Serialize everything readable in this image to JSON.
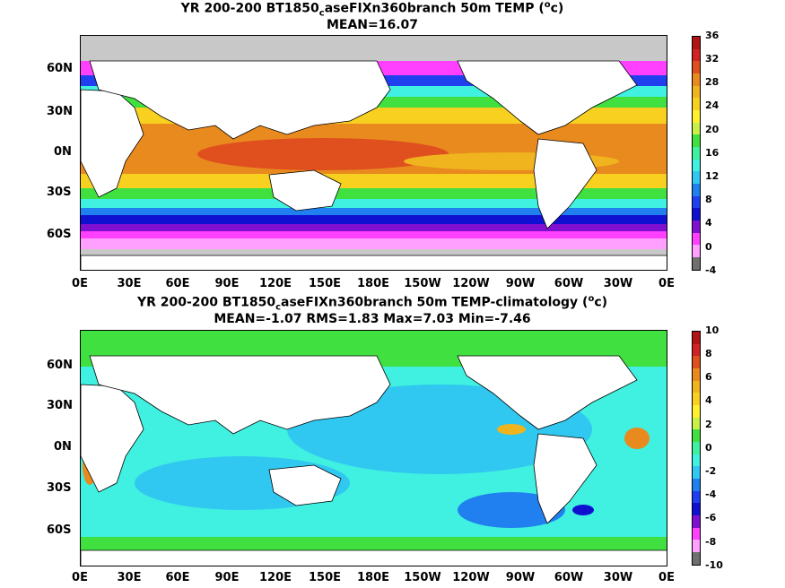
{
  "panel1": {
    "title_pre": "YR 200-200 BT1850",
    "title_sub": "c",
    "title_mid": "aseFIXn360branch 50m TEMP (",
    "title_sup": "o",
    "title_end": "c)",
    "subtitle": "MEAN=16.07",
    "lat_labels": [
      "60N",
      "30N",
      "0N",
      "30S",
      "60S"
    ],
    "lon_labels": [
      "0E",
      "30E",
      "60E",
      "90E",
      "120E",
      "150E",
      "180E",
      "150W",
      "120W",
      "90W",
      "60W",
      "30W",
      "0E"
    ],
    "colorbar_labels": [
      "36",
      "32",
      "28",
      "24",
      "20",
      "16",
      "12",
      "8",
      "4",
      "0",
      "-4"
    ],
    "colorbar_colors": [
      "#b01414",
      "#d02424",
      "#e0501e",
      "#e98a1e",
      "#f0b41e",
      "#f7d020",
      "#fff030",
      "#c8f048",
      "#40e040",
      "#40f0a0",
      "#40f0e0",
      "#30c8f0",
      "#2080f0",
      "#2040f0",
      "#1010d0",
      "#8010d0",
      "#ff40ff",
      "#ffa0ff",
      "#707070"
    ]
  },
  "panel2": {
    "title_pre": "YR 200-200 BT1850",
    "title_sub": "c",
    "title_mid": "aseFIXn360branch 50m TEMP-climatology (",
    "title_sup": "o",
    "title_end": "c)",
    "subtitle": "MEAN=-1.07   RMS=1.83   Max=7.03   Min=-7.46",
    "lat_labels": [
      "60N",
      "30N",
      "0N",
      "30S",
      "60S"
    ],
    "lon_labels": [
      "0E",
      "30E",
      "60E",
      "90E",
      "120E",
      "150E",
      "180E",
      "150W",
      "120W",
      "90W",
      "60W",
      "30W",
      "0E"
    ],
    "colorbar_labels": [
      "10",
      "8",
      "6",
      "4",
      "2",
      "0",
      "-2",
      "-4",
      "-6",
      "-8",
      "-10"
    ],
    "colorbar_colors": [
      "#b01414",
      "#d02424",
      "#e0501e",
      "#e98a1e",
      "#f0b41e",
      "#f7d020",
      "#fff030",
      "#c8f048",
      "#40e040",
      "#40f0a0",
      "#40f0e0",
      "#30c8f0",
      "#2080f0",
      "#2040f0",
      "#1010d0",
      "#8010d0",
      "#ff40ff",
      "#ffa0ff",
      "#707070"
    ]
  },
  "colors": {
    "land": "#ffffff",
    "sea_ice": "#c8c8c8",
    "coast": "#000000"
  }
}
